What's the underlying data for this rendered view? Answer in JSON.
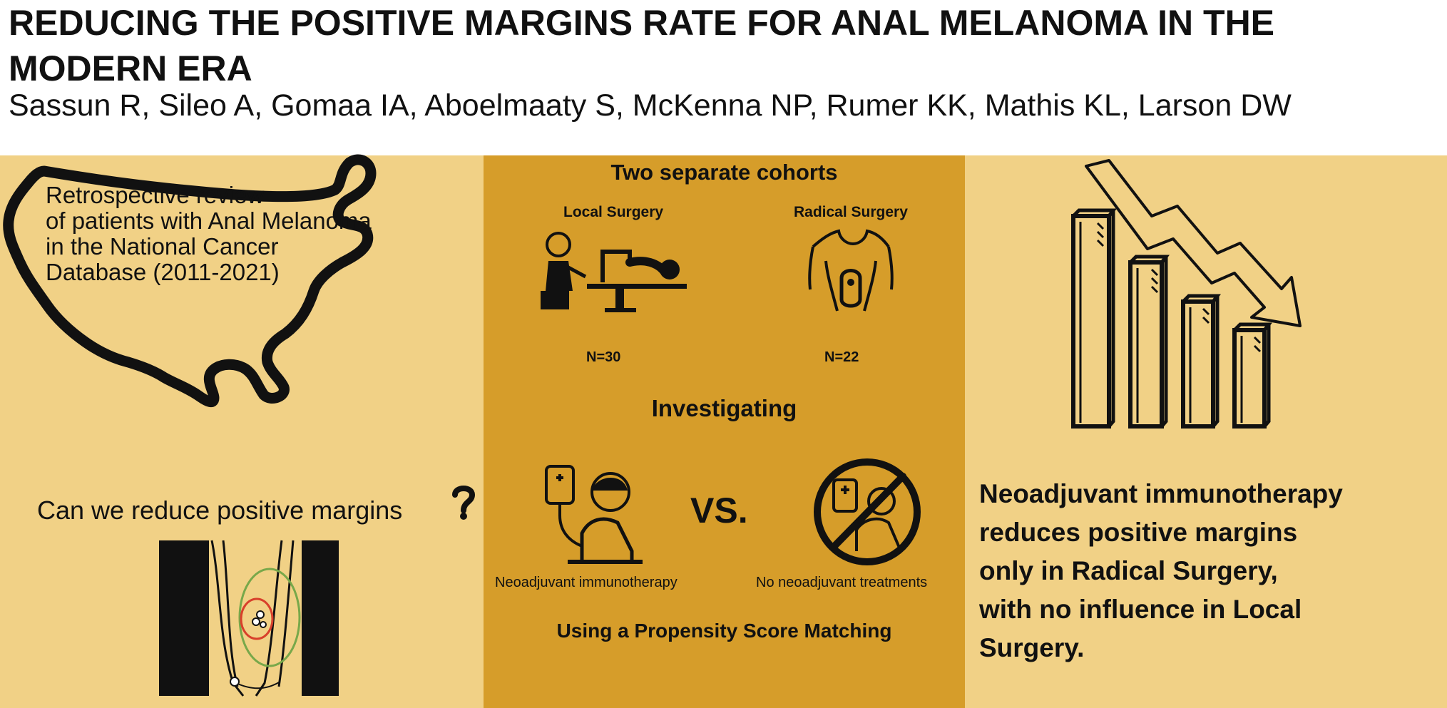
{
  "header": {
    "title": "REDUCING THE POSITIVE MARGINS RATE FOR ANAL MELANOMA IN THE MODERN ERA",
    "authors": "Sassun R, Sileo A, Gomaa IA, Aboelmaaty S, McKenna NP, Rumer KK, Mathis KL, Larson DW"
  },
  "left_panel": {
    "background": "#f1d186",
    "map_text_lines": [
      "Retrospective review",
      "of patients with Anal Melanoma",
      "in the National Cancer",
      "Database (2011-2021)"
    ],
    "question": "Can we reduce positive margins",
    "question_mark_icon": "question-mark-icon",
    "illustration_icon": "anal-canal-tumor-icon",
    "margin_colors": {
      "tumor": "#d8402b",
      "margin": "#78a84a"
    }
  },
  "middle_panel": {
    "background": "#d69d2a",
    "cohorts_title": "Two separate cohorts",
    "local_label": "Local Surgery",
    "local_n": "N=30",
    "radical_label": "Radical Surgery",
    "radical_n": "N=22",
    "investigating": "Investigating",
    "vs": "VS.",
    "neo_label": "Neoadjuvant immunotherapy",
    "no_neo_label": "No neoadjuvant treatments",
    "method": "Using a Propensity Score Matching"
  },
  "right_panel": {
    "background": "#f1d186",
    "conclusion_lines": [
      "Neoadjuvant immunotherapy",
      "reduces positive margins",
      "only in Radical Surgery,",
      "with no influence in Local",
      "Surgery."
    ],
    "chart_icon": "declining-bar-chart-icon"
  }
}
